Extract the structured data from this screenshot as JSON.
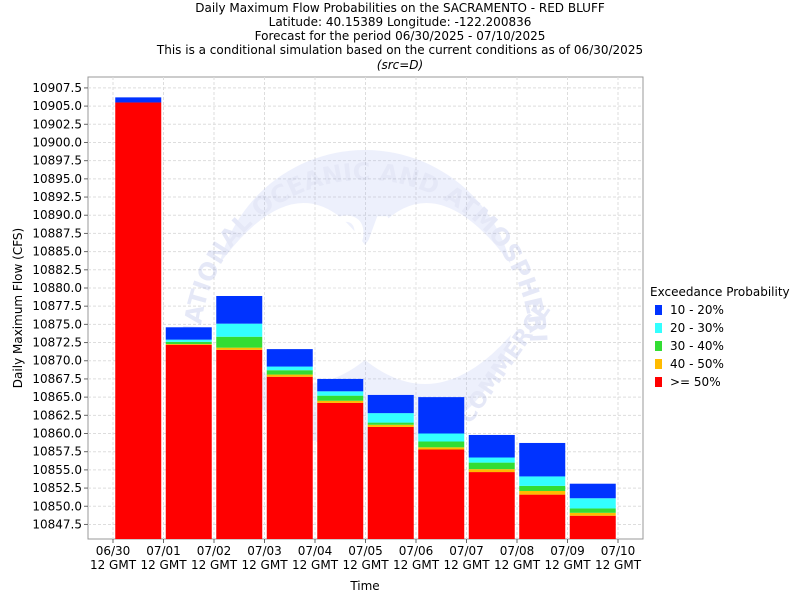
{
  "header": {
    "title": "Daily Maximum Flow Probabilities on the SACRAMENTO - RED BLUFF",
    "location": "Latitude: 40.15389 Longitude: -122.200836",
    "period": "Forecast for the period 06/30/2025 - 07/10/2025",
    "note": "This is a conditional simulation based on the current conditions as of 06/30/2025",
    "source": "(src=D)"
  },
  "watermark": {
    "logo_text": "NOAA",
    "ring_text": "NATIONAL OCEANIC AND ATMOSPHERIC ADMINISTRATION",
    "bottom_text": "COMMERCE"
  },
  "legend": {
    "title": "Exceedance Probability",
    "items": [
      {
        "label": "10 - 20%",
        "color": "#0033ff"
      },
      {
        "label": "20 - 30%",
        "color": "#33ffff"
      },
      {
        "label": "30 - 40%",
        "color": "#33dd33"
      },
      {
        "label": "40 - 50%",
        "color": "#ffbb00"
      },
      {
        "label": ">= 50%",
        "color": "#ff0000"
      }
    ]
  },
  "chart_data": {
    "type": "bar",
    "stacked": true,
    "xlabel": "Time",
    "ylabel": "Daily Maximum Flow (CFS)",
    "ylim": [
      10845.5,
      10909.0
    ],
    "grid": true,
    "legend_position": "right",
    "x_ticks": [
      "06/30",
      "07/01",
      "07/02",
      "07/03",
      "07/04",
      "07/05",
      "07/06",
      "07/07",
      "07/08",
      "07/09",
      "07/10"
    ],
    "x_tick_sub": "12 GMT",
    "y_ticks": [
      "10847.5",
      "10850.0",
      "10852.5",
      "10855.0",
      "10857.5",
      "10860.0",
      "10862.5",
      "10865.0",
      "10867.5",
      "10870.0",
      "10872.5",
      "10875.0",
      "10877.5",
      "10880.0",
      "10882.5",
      "10885.0",
      "10887.5",
      "10890.0",
      "10892.5",
      "10895.0",
      "10897.5",
      "10900.0",
      "10902.5",
      "10905.0",
      "10907.5"
    ],
    "series_keys": [
      "p50",
      "p40",
      "p30",
      "p20",
      "p10"
    ],
    "series_colors": [
      "#ff0000",
      "#ffbb00",
      "#33dd33",
      "#33ffff",
      "#0033ff"
    ],
    "bars": [
      {
        "p50": 10905.5,
        "p40": 10905.5,
        "p30": 10905.5,
        "p20": 10905.5,
        "p10": 10906.2
      },
      {
        "p50": 10872.2,
        "p40": 10872.3,
        "p30": 10872.6,
        "p20": 10872.9,
        "p10": 10874.6
      },
      {
        "p50": 10871.5,
        "p40": 10871.8,
        "p30": 10873.3,
        "p20": 10875.1,
        "p10": 10878.9
      },
      {
        "p50": 10867.8,
        "p40": 10868.1,
        "p30": 10868.7,
        "p20": 10869.2,
        "p10": 10871.6
      },
      {
        "p50": 10864.2,
        "p40": 10864.5,
        "p30": 10865.2,
        "p20": 10865.8,
        "p10": 10867.5
      },
      {
        "p50": 10860.9,
        "p40": 10861.2,
        "p30": 10861.5,
        "p20": 10862.8,
        "p10": 10865.3
      },
      {
        "p50": 10857.8,
        "p40": 10858.1,
        "p30": 10858.9,
        "p20": 10860.0,
        "p10": 10865.0
      },
      {
        "p50": 10854.7,
        "p40": 10855.1,
        "p30": 10856.0,
        "p20": 10856.7,
        "p10": 10859.8
      },
      {
        "p50": 10851.6,
        "p40": 10852.1,
        "p30": 10852.8,
        "p20": 10854.1,
        "p10": 10858.7
      },
      {
        "p50": 10848.7,
        "p40": 10849.1,
        "p30": 10849.7,
        "p20": 10851.1,
        "p10": 10853.1
      }
    ]
  }
}
